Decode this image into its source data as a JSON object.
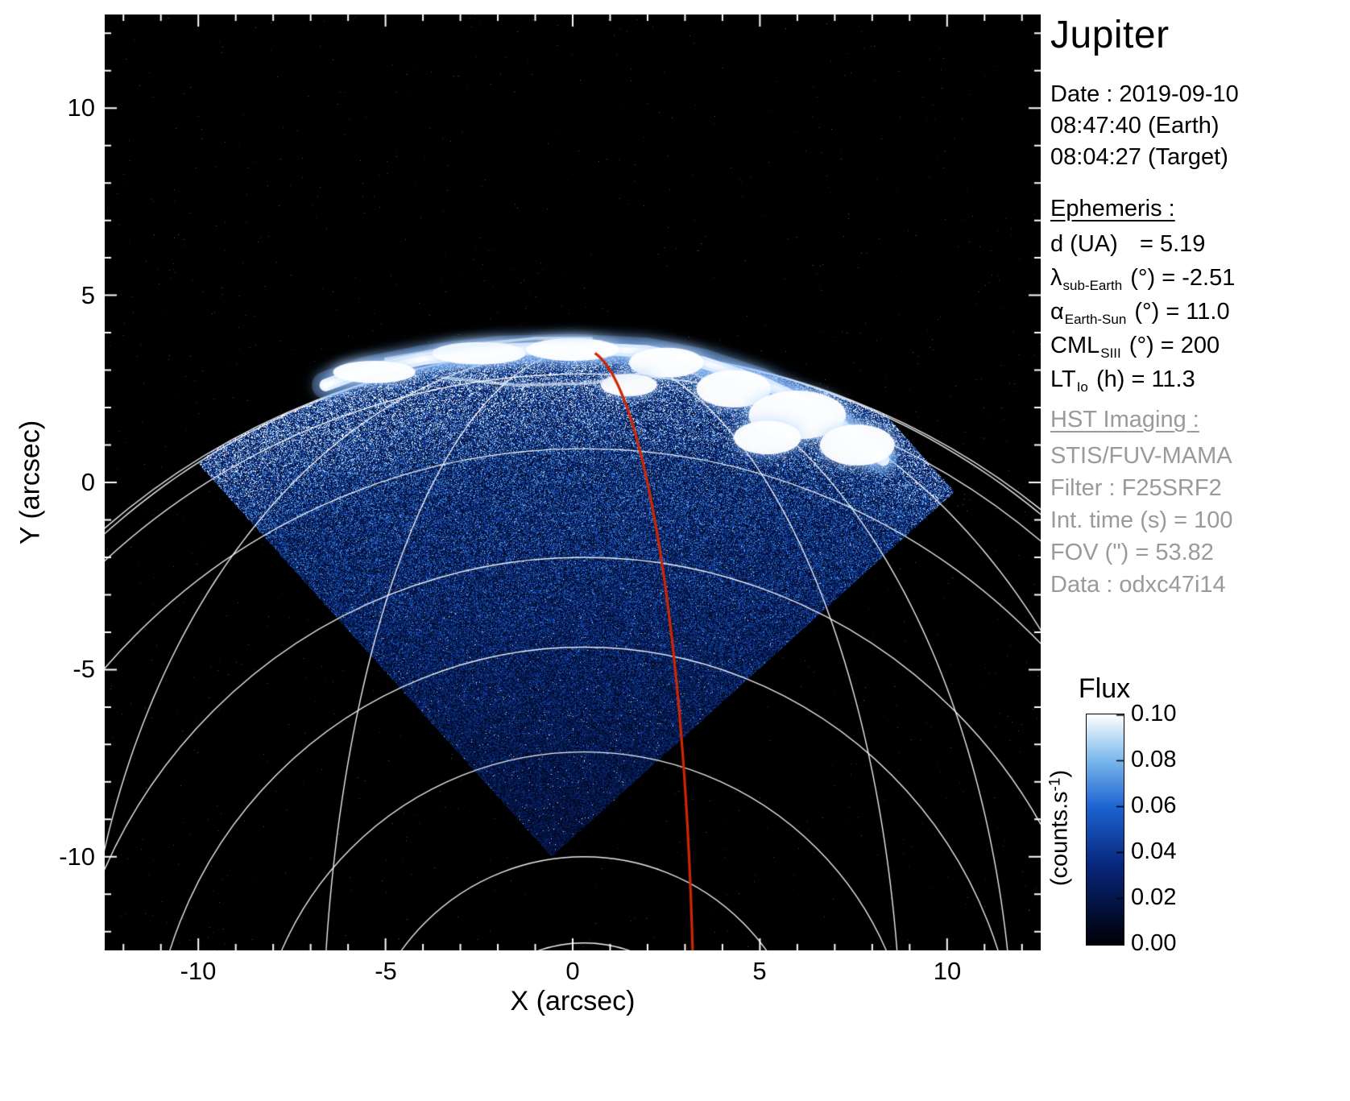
{
  "title": "Jupiter",
  "info": {
    "date": "Date : 2019-09-10",
    "time_earth": "08:47:40 (Earth)",
    "time_target": "08:04:27 (Target)"
  },
  "ephemeris": {
    "header": "Ephemeris :",
    "rows": [
      {
        "main": "d (UA)",
        "sub": "",
        "rest": "   = 5.19"
      },
      {
        "main": "λ",
        "sub": "sub-Earth",
        "rest": " (°) = -2.51"
      },
      {
        "main": "α",
        "sub": "Earth-Sun",
        "rest": " (°) = 11.0"
      },
      {
        "main": "CML",
        "sub": "SIII",
        "rest": " (°) = 200"
      },
      {
        "main": "LT",
        "sub": "Io",
        "rest": " (h) = 11.3"
      }
    ]
  },
  "hst": {
    "header": "HST Imaging :",
    "rows": [
      "STIS/FUV-MAMA",
      "Filter : F25SRF2",
      "Int. time (s) = 100",
      "FOV (\") = 53.82",
      "Data : odxc47i14"
    ]
  },
  "colorbar": {
    "title": "Flux",
    "unit_pre": "(counts.s",
    "unit_sup": "-1",
    "unit_post": ")",
    "tick_labels": [
      "0.10",
      "0.08",
      "0.06",
      "0.04",
      "0.02",
      "0.00"
    ]
  },
  "axes": {
    "xlabel": "X (arcsec)",
    "ylabel": "Y (arcsec)",
    "xtick_labels": [
      "-10",
      "-5",
      "0",
      "5",
      "10"
    ],
    "ytick_labels": [
      "10",
      "5",
      "0",
      "-5",
      "-10"
    ]
  },
  "chart_data": {
    "type": "heatmap",
    "title": "Jupiter FUV auroral image (HST/STIS)",
    "xlabel": "X (arcsec)",
    "ylabel": "Y (arcsec)",
    "xlim": [
      -12.5,
      12.5
    ],
    "ylim": [
      -12.5,
      12.5
    ],
    "xticks": [
      -10,
      -5,
      0,
      5,
      10
    ],
    "yticks": [
      10,
      5,
      0,
      -5,
      -10
    ],
    "grid": false,
    "colorbar": {
      "label": "Flux",
      "unit": "counts.s-1",
      "range": [
        0.0,
        0.1
      ],
      "ticks": [
        0.1,
        0.08,
        0.06,
        0.04,
        0.02,
        0.0
      ]
    },
    "scene": {
      "background": "#000000",
      "detector_diamond_arcsec": [
        [
          -10.0,
          0.5
        ],
        [
          0.76,
          10.3
        ],
        [
          10.2,
          -0.25
        ],
        [
          -0.56,
          -10.0
        ]
      ],
      "planet_limb_circle": {
        "center": [
          0.3,
          -16.0
        ],
        "radius": 19.55
      },
      "pole_point": [
        0.3,
        3.55
      ],
      "latitude_circle_radii": [
        18.9,
        16.9,
        14.0,
        11.6,
        8.8,
        6.0,
        3.7
      ],
      "meridian_half_widths": [
        -19.3,
        -13.5,
        -7.0,
        8.5,
        11.5,
        15.5,
        19.3
      ],
      "red_meridian_half_width": 2.95,
      "aurora_main_oval": [
        [
          -6.6,
          2.6
        ],
        [
          -5.5,
          3.0
        ],
        [
          -4.0,
          3.3
        ],
        [
          -2.0,
          3.55
        ],
        [
          0.0,
          3.6
        ],
        [
          2.0,
          3.5
        ],
        [
          3.5,
          3.2
        ],
        [
          5.0,
          2.7
        ],
        [
          6.5,
          2.0
        ],
        [
          7.6,
          1.2
        ],
        [
          8.3,
          0.6
        ]
      ],
      "aurora_patches": [
        [
          -5.3,
          2.95,
          2.2,
          0.6
        ],
        [
          -2.5,
          3.45,
          2.5,
          0.6
        ],
        [
          0.0,
          3.55,
          2.5,
          0.6
        ],
        [
          2.5,
          3.2,
          2.0,
          0.8
        ],
        [
          4.3,
          2.5,
          2.0,
          1.0
        ],
        [
          6.0,
          1.8,
          2.6,
          1.3
        ],
        [
          7.6,
          1.0,
          2.0,
          1.1
        ],
        [
          5.2,
          1.2,
          1.8,
          0.9
        ],
        [
          1.5,
          2.6,
          1.5,
          0.6
        ]
      ],
      "aurora_faint_arcs": [
        [
          [
            -5.0,
            3.3
          ],
          [
            -3.0,
            3.65
          ],
          [
            -1.0,
            3.85
          ],
          [
            0.5,
            3.85
          ]
        ],
        [
          [
            -3.5,
            2.8
          ],
          [
            -1.5,
            2.6
          ],
          [
            0.5,
            2.65
          ],
          [
            2.0,
            2.95
          ]
        ]
      ],
      "graticule_color": "#f8f8f8",
      "red_line_color": "#cf2600",
      "noise_colormap_stops": [
        [
          0.0,
          "#000008"
        ],
        [
          0.35,
          "#08287e"
        ],
        [
          0.6,
          "#1e64d2"
        ],
        [
          0.8,
          "#7ab8ec"
        ],
        [
          1.0,
          "#ffffff"
        ]
      ]
    }
  }
}
